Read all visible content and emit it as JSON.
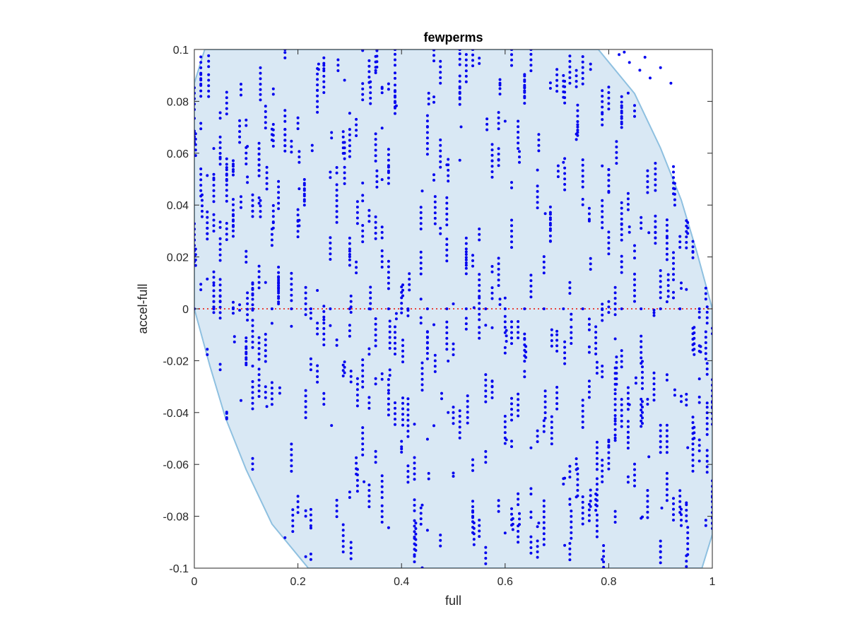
{
  "chart_data": {
    "type": "scatter",
    "title": "fewperms",
    "xlabel": "full",
    "ylabel": "accel-full",
    "xlim": [
      0,
      1
    ],
    "ylim": [
      -0.1,
      0.1
    ],
    "xticks": [
      0,
      0.2,
      0.4,
      0.6,
      0.8,
      1
    ],
    "xtick_labels": [
      "0",
      "0.2",
      "0.4",
      "0.6",
      "0.8",
      "1"
    ],
    "yticks": [
      -0.1,
      -0.08,
      -0.06,
      -0.04,
      -0.02,
      0,
      0.02,
      0.04,
      0.06,
      0.08,
      0.1
    ],
    "ytick_labels": [
      "-0.1",
      "-0.08",
      "-0.06",
      "-0.04",
      "-0.02",
      "0",
      "0.02",
      "0.04",
      "0.06",
      "0.08",
      "0.1"
    ],
    "grid": false,
    "reference_line": {
      "y": 0,
      "style": "dotted",
      "color": "#e8413a"
    },
    "band": {
      "description": "confidence ellipse",
      "color_fill": "#d9e8f4",
      "color_edge": "#8ec0e0",
      "upper": [
        [
          0,
          0.087
        ],
        [
          0.02,
          0.1
        ],
        [
          0.78,
          0.1
        ],
        [
          0.85,
          0.083
        ],
        [
          0.9,
          0.062
        ],
        [
          0.94,
          0.042
        ],
        [
          0.97,
          0.022
        ],
        [
          1.0,
          0.0
        ]
      ],
      "lower": [
        [
          0,
          0.0
        ],
        [
          0.03,
          -0.022
        ],
        [
          0.06,
          -0.042
        ],
        [
          0.1,
          -0.062
        ],
        [
          0.15,
          -0.083
        ],
        [
          0.22,
          -0.1
        ],
        [
          0.98,
          -0.1
        ],
        [
          1.0,
          -0.087
        ]
      ]
    },
    "series": [
      {
        "color": "#0000ee",
        "point_count_approx": 2000,
        "pattern": "quantized short vertical strands; columns every ~0.0125 in x, points every ~0.0021 in y, clipped to [-0.1, 0.1]"
      }
    ]
  }
}
